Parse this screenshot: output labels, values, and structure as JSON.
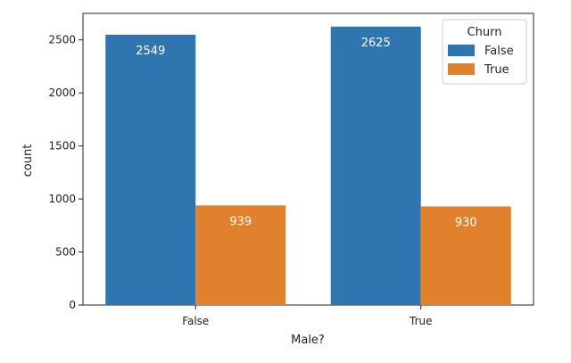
{
  "chart_data": {
    "type": "bar",
    "categories": [
      "False",
      "True"
    ],
    "series": [
      {
        "name": "False",
        "values": [
          2549,
          2625
        ],
        "color": "#2f76b0"
      },
      {
        "name": "True",
        "values": [
          939,
          930
        ],
        "color": "#e1812c"
      }
    ],
    "xlabel": "Male?",
    "ylabel": "count",
    "ylim": [
      0,
      2750
    ],
    "yticks": [
      0,
      500,
      1000,
      1500,
      2000,
      2500
    ],
    "legend": {
      "title": "Churn",
      "placement": "top-right"
    },
    "grid": false,
    "data_labels": true
  }
}
